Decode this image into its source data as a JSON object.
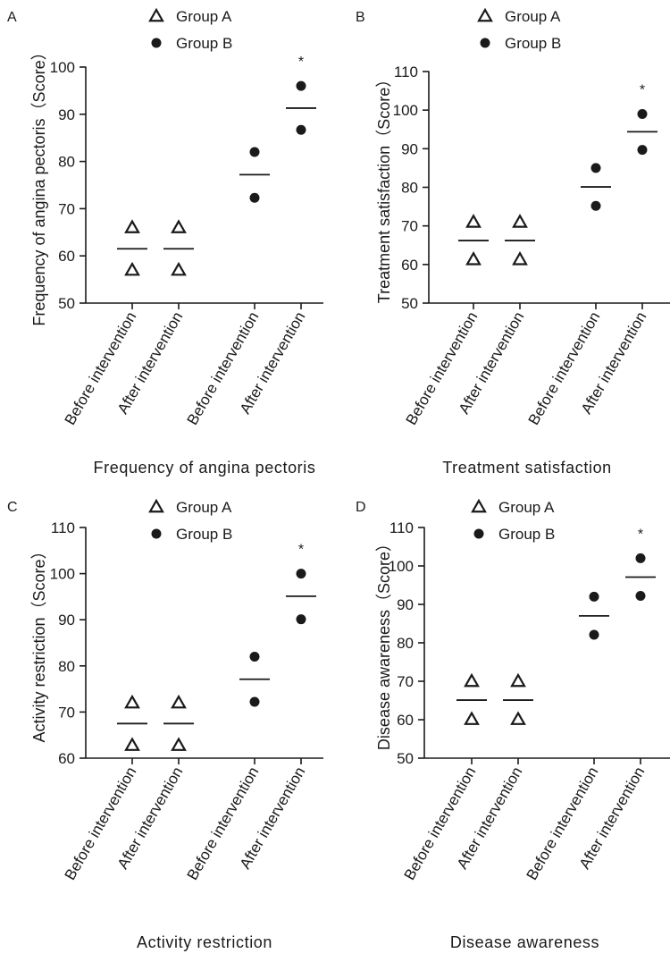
{
  "chart_data": [
    {
      "panel_label": "A",
      "type": "scatter",
      "ylabel": "Frequency of angina pectoris（Score）",
      "xlabel": "Frequency of angina pectoris",
      "categories": [
        "Before intervention",
        "After intervention",
        "Before intervention",
        "After intervention"
      ],
      "ylim": [
        50,
        100
      ],
      "yticks": [
        50,
        60,
        70,
        80,
        90,
        100
      ],
      "legend": [
        {
          "name": "Group A",
          "marker": "triangle"
        },
        {
          "name": "Group B",
          "marker": "circle"
        }
      ],
      "legend_position": "top-center",
      "grid": false,
      "series": [
        {
          "name": "Group A",
          "marker": "triangle",
          "points": [
            {
              "category": 0,
              "values": [
                66,
                57
              ],
              "mean": 61.5
            },
            {
              "category": 1,
              "values": [
                66,
                57
              ],
              "mean": 61.5
            }
          ]
        },
        {
          "name": "Group B",
          "marker": "circle",
          "points": [
            {
              "category": 2,
              "values": [
                82,
                72.3
              ],
              "mean": 77.2
            },
            {
              "category": 3,
              "values": [
                96,
                86.7
              ],
              "mean": 91.3,
              "annotation": "*"
            }
          ]
        }
      ]
    },
    {
      "panel_label": "B",
      "type": "scatter",
      "ylabel": "Treatment satisfaction（Score）",
      "xlabel": "Treatment satisfaction",
      "categories": [
        "Before intervention",
        "After intervention",
        "Before intervention",
        "After intervention"
      ],
      "ylim": [
        50,
        110
      ],
      "yticks": [
        50,
        60,
        70,
        80,
        90,
        100,
        110
      ],
      "legend": [
        {
          "name": "Group A",
          "marker": "triangle"
        },
        {
          "name": "Group B",
          "marker": "circle"
        }
      ],
      "legend_position": "top-center",
      "grid": false,
      "series": [
        {
          "name": "Group A",
          "marker": "triangle",
          "points": [
            {
              "category": 0,
              "values": [
                71,
                61.3
              ],
              "mean": 66.2
            },
            {
              "category": 1,
              "values": [
                71,
                61.3
              ],
              "mean": 66.2
            }
          ]
        },
        {
          "name": "Group B",
          "marker": "circle",
          "points": [
            {
              "category": 2,
              "values": [
                85,
                75.2
              ],
              "mean": 80.1
            },
            {
              "category": 3,
              "values": [
                99,
                89.7
              ],
              "mean": 94.4,
              "annotation": "*"
            }
          ]
        }
      ]
    },
    {
      "panel_label": "C",
      "type": "scatter",
      "ylabel": "Activity restriction（Score）",
      "xlabel": "Activity restriction",
      "categories": [
        "Before intervention",
        "After intervention",
        "Before intervention",
        "After intervention"
      ],
      "ylim": [
        60,
        110
      ],
      "yticks": [
        60,
        70,
        80,
        90,
        100,
        110
      ],
      "legend": [
        {
          "name": "Group A",
          "marker": "triangle"
        },
        {
          "name": "Group B",
          "marker": "circle"
        }
      ],
      "legend_position": "top-center",
      "grid": false,
      "series": [
        {
          "name": "Group A",
          "marker": "triangle",
          "points": [
            {
              "category": 0,
              "values": [
                72,
                62.8
              ],
              "mean": 67.5
            },
            {
              "category": 1,
              "values": [
                72,
                62.8
              ],
              "mean": 67.5
            }
          ]
        },
        {
          "name": "Group B",
          "marker": "circle",
          "points": [
            {
              "category": 2,
              "values": [
                82,
                72.2
              ],
              "mean": 77.1
            },
            {
              "category": 3,
              "values": [
                100,
                90.1
              ],
              "mean": 95.1,
              "annotation": "*"
            }
          ]
        }
      ]
    },
    {
      "panel_label": "D",
      "type": "scatter",
      "ylabel": "Disease awareness（Score）",
      "xlabel": "Disease awareness",
      "categories": [
        "Before intervention",
        "After intervention",
        "Before intervention",
        "After intervention"
      ],
      "ylim": [
        50,
        110
      ],
      "yticks": [
        50,
        60,
        70,
        80,
        90,
        100,
        110
      ],
      "legend": [
        {
          "name": "Group A",
          "marker": "triangle"
        },
        {
          "name": "Group B",
          "marker": "circle"
        }
      ],
      "legend_position": "top-center",
      "grid": false,
      "series": [
        {
          "name": "Group A",
          "marker": "triangle",
          "points": [
            {
              "category": 0,
              "values": [
                70,
                60.1
              ],
              "mean": 65.1
            },
            {
              "category": 1,
              "values": [
                70,
                60.1
              ],
              "mean": 65.1
            }
          ]
        },
        {
          "name": "Group B",
          "marker": "circle",
          "points": [
            {
              "category": 2,
              "values": [
                92,
                82.1
              ],
              "mean": 87.0
            },
            {
              "category": 3,
              "values": [
                102,
                92.2
              ],
              "mean": 97.1,
              "annotation": "*"
            }
          ]
        }
      ]
    }
  ]
}
